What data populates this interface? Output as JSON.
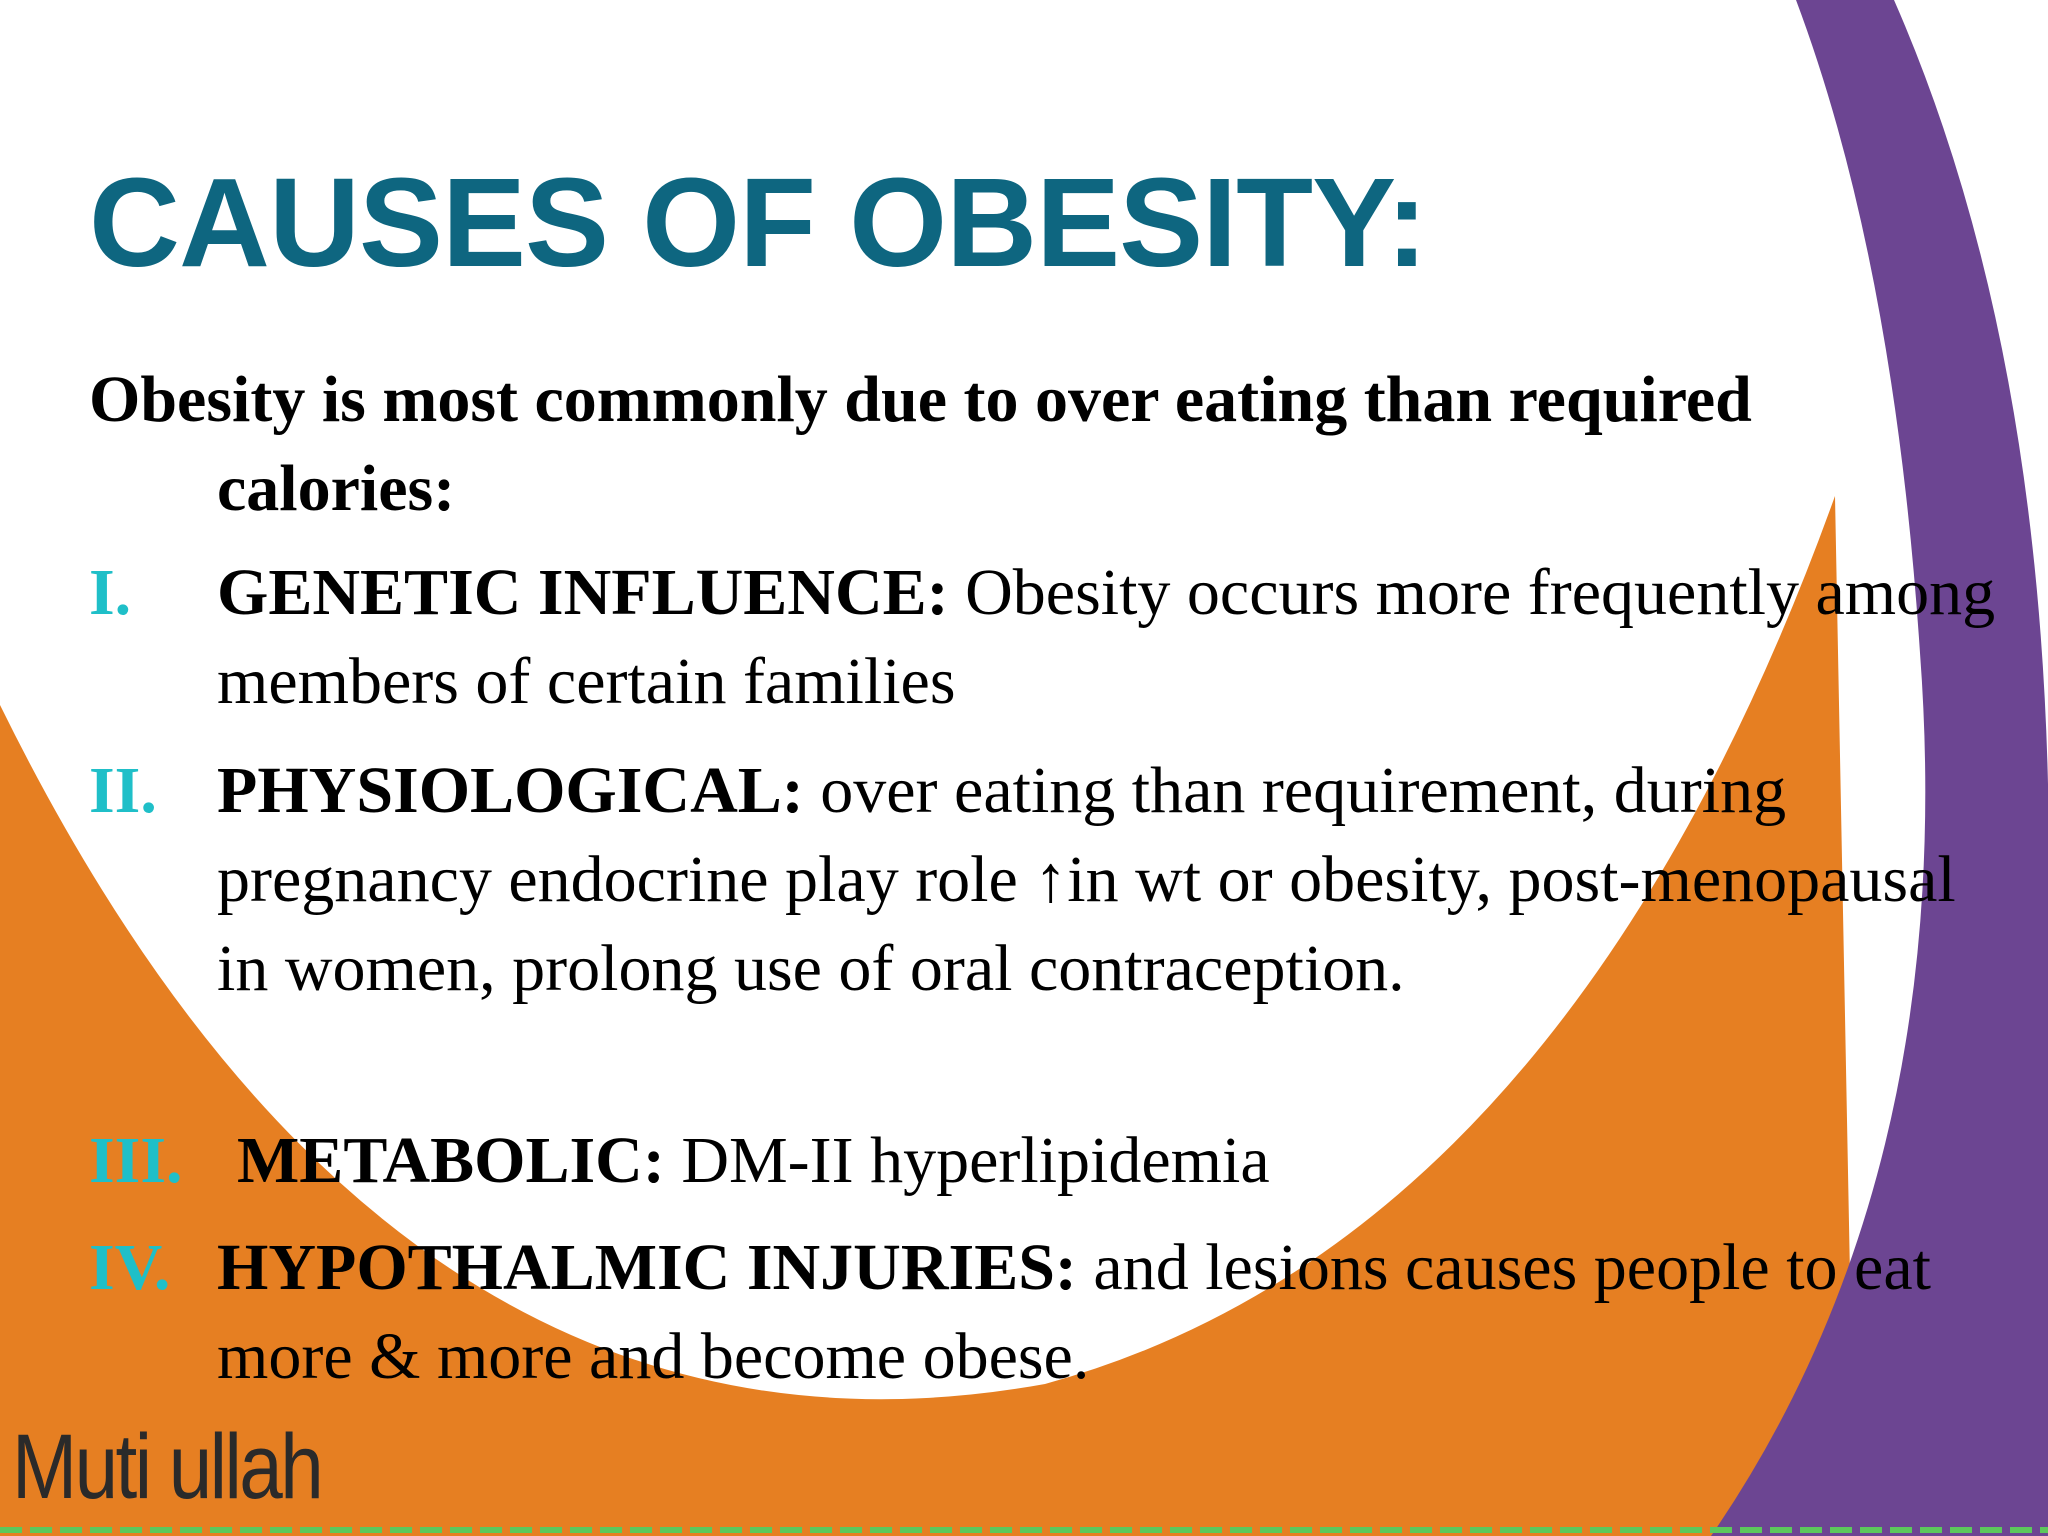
{
  "title": "CAUSES OF OBESITY:",
  "intro": "Obesity is most commonly due to over eating than required calories:",
  "items": [
    {
      "numeral": "I.",
      "heading": "GENETIC INFLUENCE:",
      "text": "Obesity occurs more frequently among members of certain families"
    },
    {
      "numeral": "II.",
      "heading": "PHYSIOLOGICAL:",
      "text": "over eating than requirement, during pregnancy endocrine play role ↑in wt or obesity, post-menopausal in women, prolong use of oral contraception."
    },
    {
      "numeral": "III.",
      "heading": "METABOLIC:",
      "text": "DM-II hyperlipidemia"
    },
    {
      "numeral": "IV.",
      "heading": "HYPOTHALMIC INJURIES:",
      "text": "and lesions causes people to eat more & more and become obese."
    }
  ],
  "footer": "Muti ullah"
}
